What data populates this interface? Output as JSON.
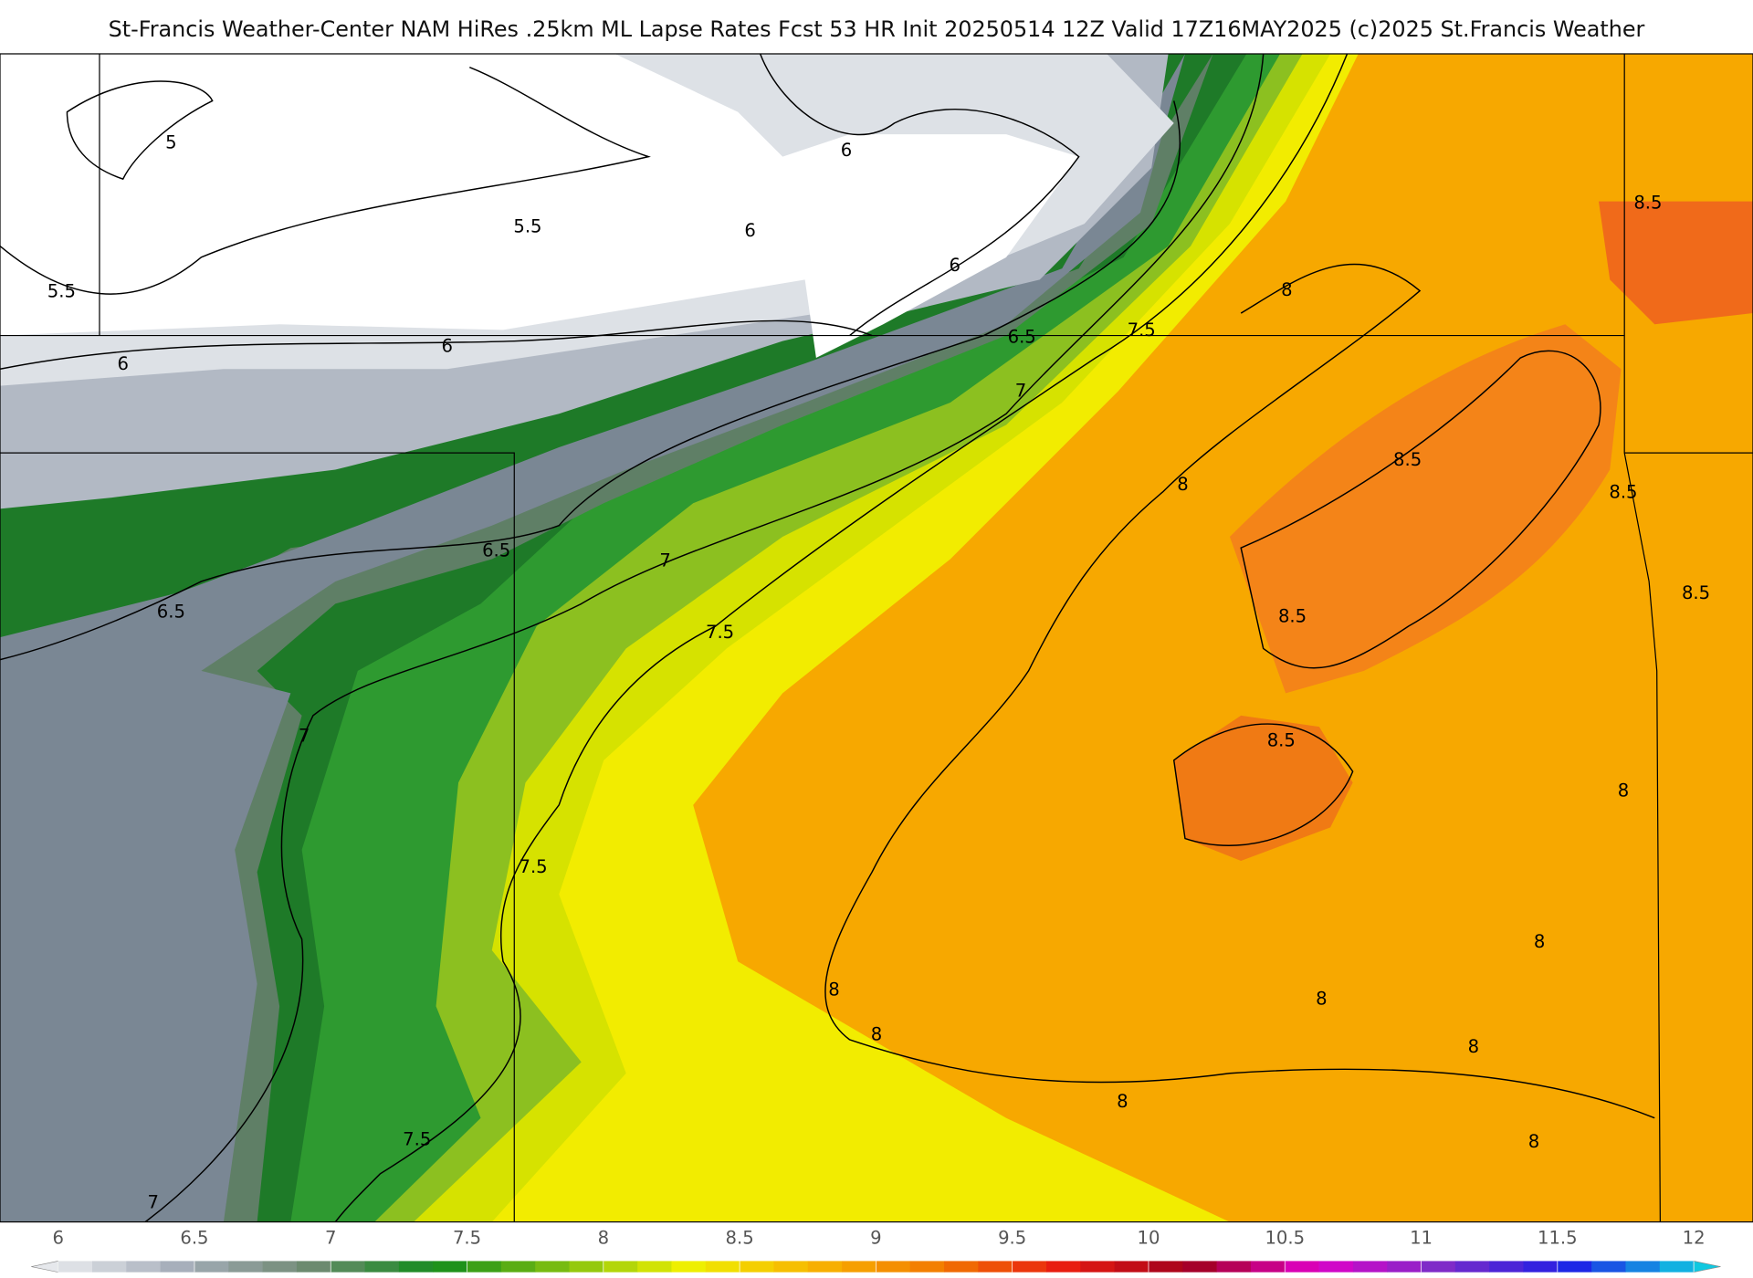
{
  "title": "St-Francis Weather-Center NAM HiRes .25km ML Lapse Rates  Fcst 53 HR Init 20250514 12Z  Valid 17Z16MAY2025    (c)2025 St.Francis Weather",
  "colorbar": {
    "ticks": [
      6,
      6.5,
      7,
      7.5,
      8,
      8.5,
      9,
      9.5,
      10,
      10.5,
      11,
      11.5,
      12
    ],
    "colors": [
      "#e6e8ec",
      "#a4acb8",
      "#6f8a72",
      "#138c1c",
      "#7fbf10",
      "#eef000",
      "#f8b400",
      "#f27a00",
      "#e81c10",
      "#a0001e",
      "#e000c8",
      "#7c2cc8",
      "#1e1ee6",
      "#10c8e0"
    ]
  },
  "contour_labels": [
    5,
    5.5,
    5.5,
    6,
    6,
    6,
    6,
    6,
    6.5,
    7.5,
    8,
    7,
    8.5,
    8.5,
    8,
    8.5,
    6.5,
    7,
    6.5,
    8.5,
    8.5,
    7.5,
    7,
    8.5,
    8,
    7.5,
    8,
    8,
    8,
    8,
    8,
    8,
    7.5,
    8,
    7
  ]
}
